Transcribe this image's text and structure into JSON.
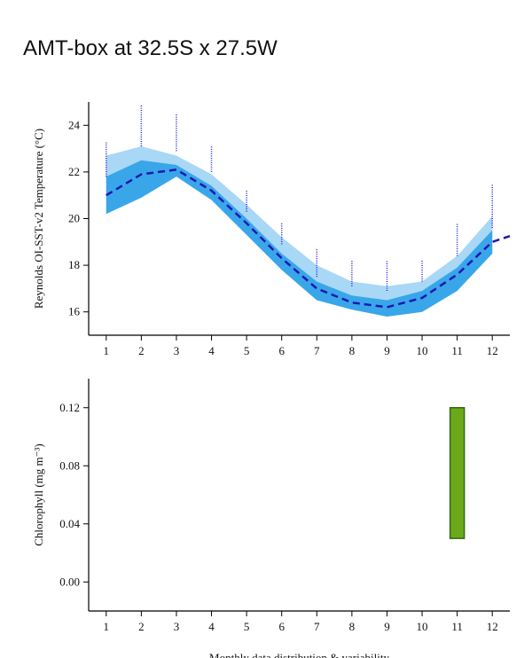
{
  "title": "AMT-box at 32.5S x 27.5W",
  "chart_data": [
    {
      "type": "line",
      "ylabel": "Reynolds OI-SST-v2 Temperature (°C)",
      "xlim": [
        0.5,
        12.5
      ],
      "ylim": [
        15,
        25
      ],
      "xticks": [
        1,
        2,
        3,
        4,
        5,
        6,
        7,
        8,
        9,
        10,
        11,
        12
      ],
      "yticks": [
        16,
        18,
        20,
        22,
        24
      ],
      "months": [
        1,
        2,
        3,
        4,
        5,
        6,
        7,
        8,
        9,
        10,
        11,
        12
      ],
      "bands": [
        {
          "color": "#a8d8f5",
          "lower": [
            20.2,
            20.9,
            21.8,
            20.8,
            19.3,
            17.8,
            16.5,
            16.1,
            15.8,
            16.0,
            16.9,
            18.5
          ],
          "upper": [
            22.7,
            23.1,
            22.7,
            21.9,
            20.6,
            19.2,
            18.0,
            17.3,
            17.1,
            17.3,
            18.4,
            20.1
          ]
        },
        {
          "color": "#3aa6ea",
          "lower": [
            20.2,
            20.9,
            21.8,
            20.8,
            19.3,
            17.8,
            16.5,
            16.1,
            15.8,
            16.0,
            16.9,
            18.5
          ],
          "upper": [
            21.8,
            22.5,
            22.3,
            21.4,
            20.0,
            18.5,
            17.3,
            16.7,
            16.5,
            16.9,
            17.9,
            19.5
          ]
        }
      ],
      "spread_color": "#2222dd",
      "spread_low": [
        21.8,
        23.1,
        22.9,
        22.0,
        20.3,
        18.9,
        17.5,
        17.1,
        16.9,
        17.3,
        18.4,
        19.6
      ],
      "spread_high": [
        23.3,
        24.9,
        24.5,
        23.1,
        21.2,
        19.8,
        18.7,
        18.2,
        18.2,
        18.2,
        19.8,
        21.5
      ],
      "x": [
        1,
        2,
        3,
        4,
        5,
        6,
        7,
        8,
        9,
        10,
        11,
        12,
        12.5
      ],
      "values": [
        21.0,
        21.9,
        22.1,
        21.2,
        19.8,
        18.3,
        17.0,
        16.4,
        16.2,
        16.6,
        17.6,
        19.0,
        19.25
      ],
      "color": "#1a1ab0"
    },
    {
      "type": "bar",
      "ylabel": "Chlorophyll (mg m⁻³)",
      "xlabel": "Monthly data distribution & variability",
      "xlim": [
        0.5,
        12.5
      ],
      "ylim": [
        -0.02,
        0.14
      ],
      "xticks": [
        1,
        2,
        3,
        4,
        5,
        6,
        7,
        8,
        9,
        10,
        11,
        12
      ],
      "yticks": [
        {
          "value": 0,
          "label": "0.00"
        },
        {
          "value": 0.04,
          "label": "0.04"
        },
        {
          "value": 0.08,
          "label": "0.08"
        },
        {
          "value": 0.12,
          "label": "0.12"
        }
      ],
      "x": [
        11
      ],
      "low": [
        0.03
      ],
      "high": [
        0.12
      ],
      "color": "#6aaa1a",
      "edge_color": "#2e6b10"
    }
  ]
}
